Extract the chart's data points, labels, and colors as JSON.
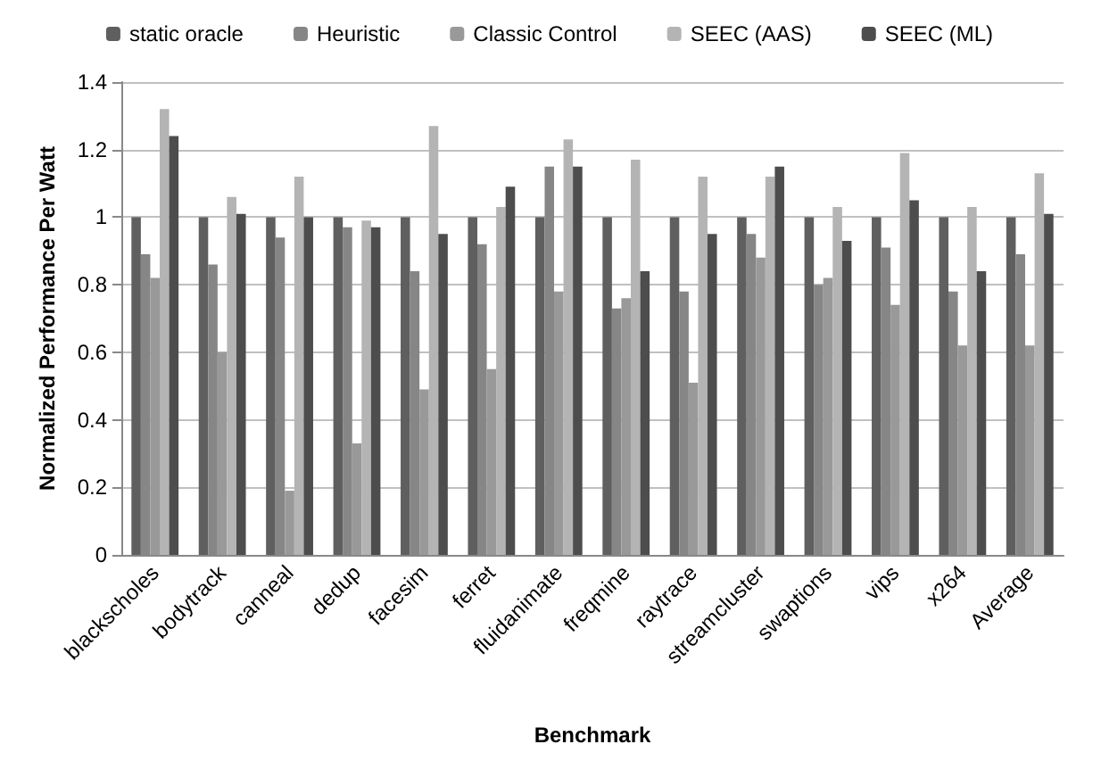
{
  "chart_data": {
    "type": "bar",
    "xlabel": "Benchmark",
    "ylabel": "Normalized Performance Per Watt",
    "categories": [
      "blackscholes",
      "bodytrack",
      "canneal",
      "dedup",
      "facesim",
      "ferret",
      "fluidanimate",
      "freqmine",
      "raytrace",
      "streamcluster",
      "swaptions",
      "vips",
      "x264",
      "Average"
    ],
    "series": [
      {
        "name": "static oracle",
        "color": "#5f5f5f",
        "values": [
          1,
          1,
          1,
          1,
          1,
          1,
          1,
          1,
          1,
          1,
          1,
          1,
          1,
          1
        ]
      },
      {
        "name": "Heuristic",
        "color": "#868686",
        "values": [
          0.89,
          0.86,
          0.94,
          0.97,
          0.84,
          0.92,
          1.15,
          0.73,
          0.78,
          0.95,
          0.8,
          0.91,
          0.78,
          0.89
        ]
      },
      {
        "name": "Classic Control",
        "color": "#999999",
        "values": [
          0.82,
          0.6,
          0.19,
          0.33,
          0.49,
          0.55,
          0.78,
          0.76,
          0.51,
          0.88,
          0.82,
          0.74,
          0.62,
          0.62
        ]
      },
      {
        "name": "SEEC (AAS)",
        "color": "#b4b4b4",
        "values": [
          1.32,
          1.06,
          1.12,
          0.99,
          1.27,
          1.03,
          1.23,
          1.17,
          1.12,
          1.12,
          1.03,
          1.19,
          1.03,
          1.13
        ]
      },
      {
        "name": "SEEC (ML)",
        "color": "#4d4d4d",
        "values": [
          1.24,
          1.01,
          1.0,
          0.97,
          0.95,
          1.09,
          1.15,
          0.84,
          0.95,
          1.15,
          0.93,
          1.05,
          0.84,
          1.01
        ]
      }
    ],
    "ylim": [
      0,
      1.4
    ],
    "yticks": [
      0,
      0.2,
      0.4,
      0.6,
      0.8,
      1,
      1.2,
      1.4
    ],
    "grid": "y",
    "legend": "top"
  }
}
